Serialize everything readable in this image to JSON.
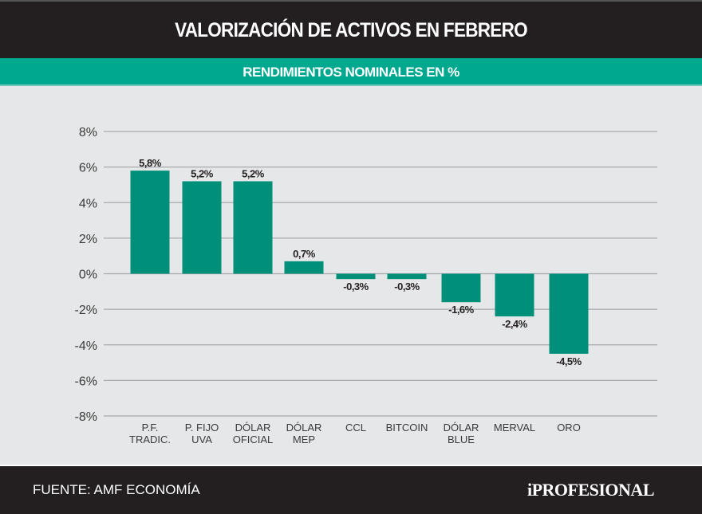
{
  "header": {
    "title": "VALORIZACIÓN DE ACTIVOS EN FEBRERO",
    "subtitle": "RENDIMIENTOS NOMINALES EN %"
  },
  "footer": {
    "source": "FUENTE: AMF ECONOMÍA",
    "logo": "iPROFESIONAL"
  },
  "colors": {
    "bar": "#00907a",
    "header": "#231f20",
    "band": "#00a88f",
    "background": "#e6e7e8"
  },
  "chart_data": {
    "type": "bar",
    "title": "VALORIZACIÓN DE ACTIVOS EN FEBRERO",
    "subtitle": "RENDIMIENTOS NOMINALES EN %",
    "categories": [
      [
        "P.F.",
        "TRADIC."
      ],
      [
        "P. FIJO",
        "UVA"
      ],
      [
        "DÓLAR",
        "OFICIAL"
      ],
      [
        "DÓLAR",
        "MEP"
      ],
      [
        "CCL"
      ],
      [
        "BITCOIN"
      ],
      [
        "DÓLAR",
        "BLUE"
      ],
      [
        "MERVAL"
      ],
      [
        "ORO"
      ]
    ],
    "values": [
      5.8,
      5.2,
      5.2,
      0.7,
      -0.3,
      -0.3,
      -1.6,
      -2.4,
      -4.5
    ],
    "data_labels": [
      "5,8%",
      "5,2%",
      "5,2%",
      "0,7%",
      "-0,3%",
      "-0,3%",
      "-1,6%",
      "-2,4%",
      "-4,5%"
    ],
    "yticks": [
      8,
      6,
      4,
      2,
      0,
      -2,
      -4,
      -6,
      -8
    ],
    "ytick_labels": [
      "8%",
      "6%",
      "4%",
      "2%",
      "0%",
      "-2%",
      "-4%",
      "-6%",
      "-8%"
    ],
    "ylim": [
      -8,
      8
    ],
    "grid": true,
    "xlabel": "",
    "ylabel": ""
  }
}
